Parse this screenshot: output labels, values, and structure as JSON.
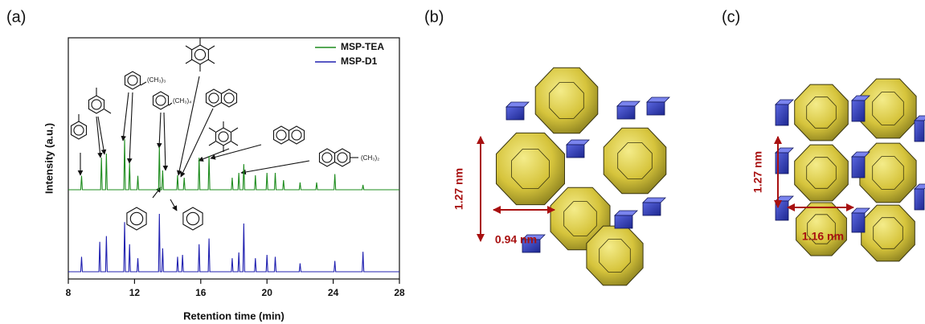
{
  "panel_labels": [
    "(a)",
    "(b)",
    "(c)"
  ],
  "chart_data": {
    "type": "line",
    "xlabel": "Retention time (min)",
    "ylabel": "Intensity (a.u.)",
    "xlim": [
      8,
      28
    ],
    "xticks": [
      8,
      12,
      16,
      20,
      24,
      28
    ],
    "ylim": [
      0,
      100
    ],
    "legend": "upper right",
    "annotations": [
      "(CH₃)₃",
      "(CH₃)₄",
      "(CH₃)₂"
    ],
    "series": [
      {
        "name": "MSP-TEA",
        "color": "#1e8c1e",
        "x": [
          8,
          8.75,
          8.8,
          8.85,
          9.95,
          10,
          10.05,
          10.25,
          10.3,
          10.35,
          11.35,
          11.4,
          11.45,
          11.65,
          11.7,
          11.75,
          12.15,
          12.2,
          12.25,
          13.45,
          13.5,
          13.55,
          13.65,
          13.7,
          13.75,
          14.55,
          14.6,
          14.65,
          14.95,
          15,
          15.05,
          15.85,
          15.9,
          15.95,
          16.45,
          16.5,
          16.55,
          17.85,
          17.9,
          17.95,
          18.25,
          18.3,
          18.35,
          18.55,
          18.6,
          18.65,
          19.25,
          19.3,
          19.35,
          19.95,
          20,
          20.05,
          20.45,
          20.5,
          20.55,
          20.95,
          21,
          21.05,
          21.95,
          22,
          22.05,
          22.95,
          23,
          23.05,
          24.05,
          24.1,
          24.15,
          25.75,
          25.8,
          25.85,
          28
        ],
        "values": [
          37,
          37,
          42.8,
          37,
          37,
          50.3,
          37,
          37,
          52,
          37,
          37,
          57.9,
          37,
          37,
          48,
          37,
          37,
          42.8,
          37,
          37,
          54.8,
          37,
          37,
          45,
          37,
          37,
          43,
          37,
          37,
          42,
          37,
          37,
          50.3,
          37,
          37,
          51,
          37,
          37,
          42,
          37,
          37,
          44,
          37,
          37,
          47.6,
          37,
          37,
          43,
          37,
          37,
          44,
          37,
          37,
          44,
          37,
          37,
          41,
          37,
          37,
          40,
          37,
          37,
          40,
          37,
          37,
          43.5,
          37,
          37,
          39,
          37,
          37
        ]
      },
      {
        "name": "MSP-D1",
        "color": "#2020b0",
        "x": [
          8,
          8.75,
          8.8,
          8.85,
          9.85,
          9.9,
          9.95,
          10.25,
          10.3,
          10.35,
          11.35,
          11.4,
          11.45,
          11.65,
          11.7,
          11.75,
          12.15,
          12.2,
          12.25,
          13.45,
          13.5,
          13.55,
          13.65,
          13.7,
          13.75,
          14.55,
          14.6,
          14.65,
          14.85,
          14.9,
          14.95,
          15.85,
          15.9,
          15.95,
          16.45,
          16.5,
          16.55,
          17.85,
          17.9,
          17.95,
          18.25,
          18.3,
          18.35,
          18.55,
          18.6,
          18.65,
          19.25,
          19.3,
          19.35,
          19.95,
          20,
          20.05,
          20.45,
          20.5,
          20.55,
          21.95,
          22,
          22.05,
          24.05,
          24.1,
          24.15,
          25.75,
          25.8,
          25.85,
          28
        ],
        "values": [
          3,
          3,
          9.2,
          3,
          3,
          15.4,
          3,
          3,
          17.8,
          3,
          3,
          23.6,
          3,
          3,
          14.4,
          3,
          3,
          8.6,
          3,
          3,
          27,
          3,
          3,
          12.7,
          3,
          3,
          9.2,
          3,
          3,
          10,
          3,
          3,
          14.4,
          3,
          3,
          16.8,
          3,
          3,
          8.6,
          3,
          3,
          11,
          3,
          3,
          23,
          3,
          3,
          8.6,
          3,
          3,
          10,
          3,
          3,
          9.2,
          3,
          3,
          6.5,
          3,
          3,
          7.5,
          3,
          3,
          11.3,
          3,
          3
        ]
      }
    ]
  },
  "panel_b": {
    "height_label": "1.27 nm",
    "width_label": "0.94 nm"
  },
  "panel_c": {
    "height_label": "1.27 nm",
    "width_label": "1.16 nm"
  }
}
